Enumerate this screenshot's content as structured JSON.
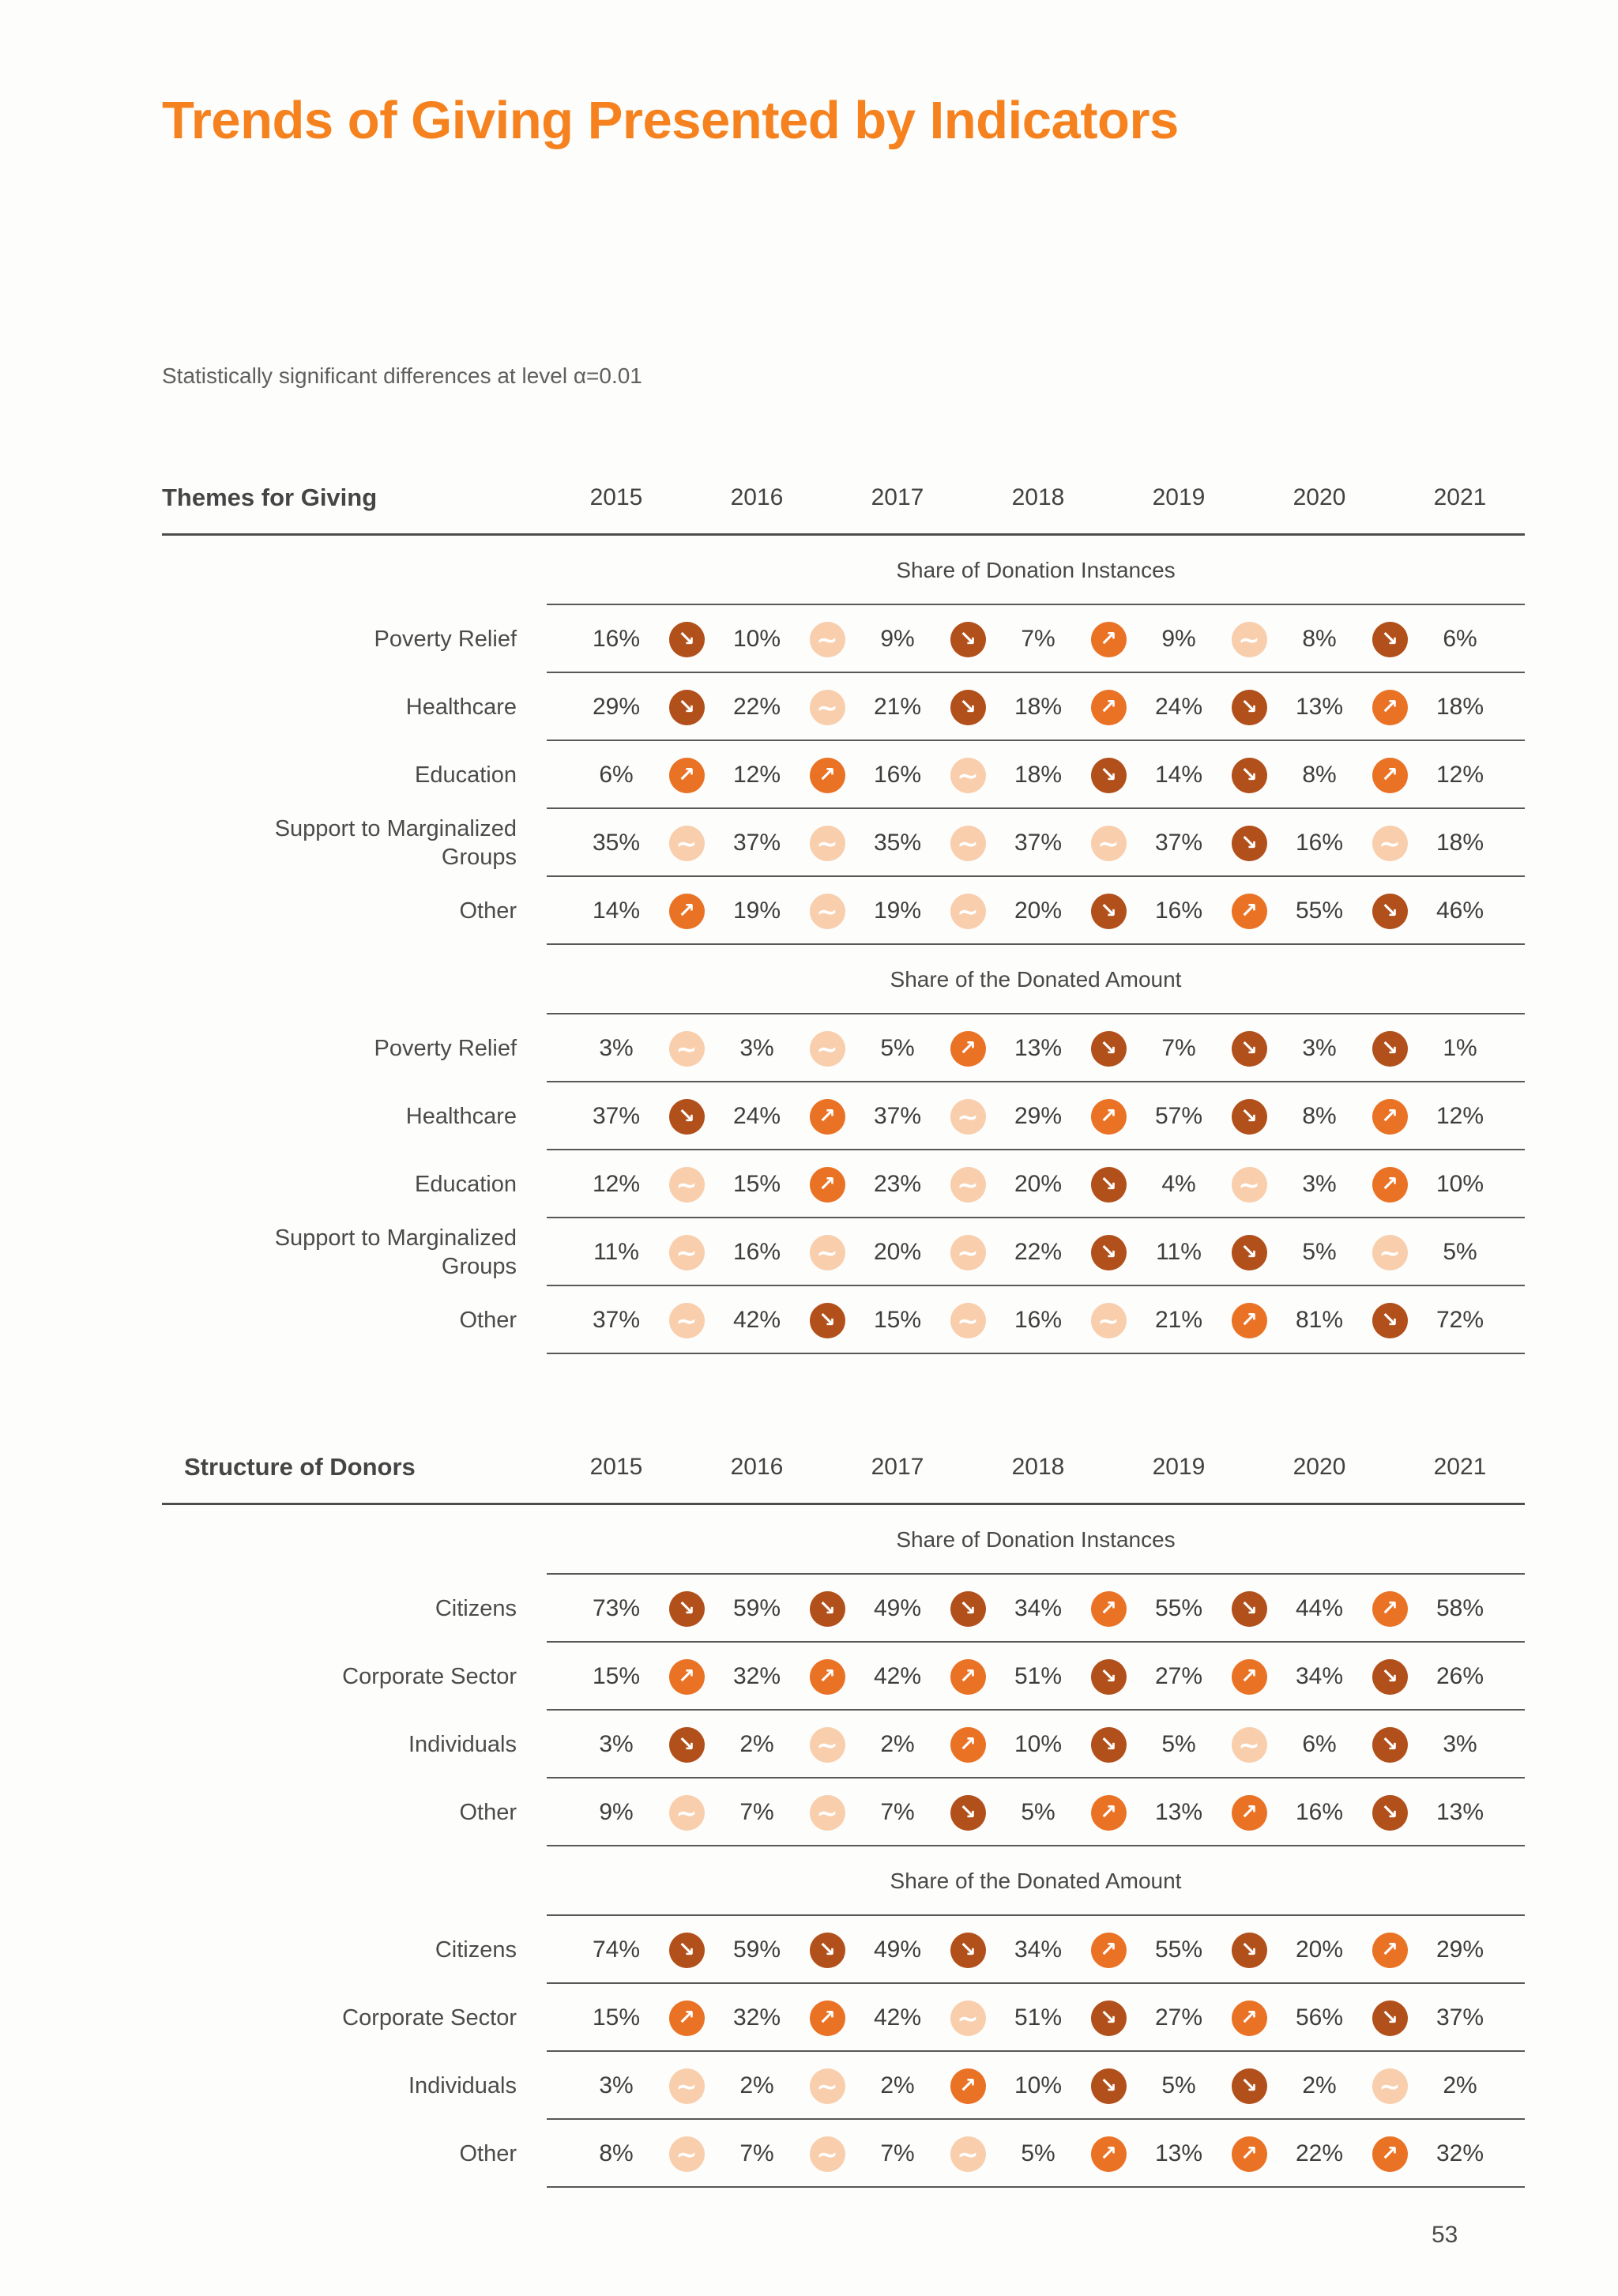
{
  "page": {
    "title": "Trends of Giving Presented by Indicators",
    "subtitle": "Statistically significant differences at level α=0.01",
    "page_number": "53"
  },
  "colors": {
    "accent_orange": "#F5821F",
    "trend_up_circle": "#EA7225",
    "trend_down_circle": "#B2501B",
    "trend_same_circle": "#F8CEAC",
    "rule_dark": "#4D4D4D",
    "text_dark": "#3E3E3E",
    "text_muted": "#5F5F5F"
  },
  "icons": {
    "up_glyph": "↗",
    "down_glyph": "↘",
    "same_glyph": "∼",
    "up_name": "trend-up-icon",
    "down_name": "trend-down-icon",
    "same_name": "trend-no-change-icon"
  },
  "tables": [
    {
      "title": "Themes for Giving",
      "years": [
        "2015",
        "2016",
        "2017",
        "2018",
        "2019",
        "2020",
        "2021"
      ],
      "sections": [
        {
          "header": "Share of Donation Instances",
          "rows": [
            {
              "label": "Poverty Relief",
              "values": [
                "16%",
                "10%",
                "9%",
                "7%",
                "9%",
                "8%",
                "6%"
              ],
              "trends": [
                "down",
                "same",
                "down",
                "up",
                "same",
                "down"
              ]
            },
            {
              "label": "Healthcare",
              "values": [
                "29%",
                "22%",
                "21%",
                "18%",
                "24%",
                "13%",
                "18%"
              ],
              "trends": [
                "down",
                "same",
                "down",
                "up",
                "down",
                "up"
              ]
            },
            {
              "label": "Education",
              "values": [
                "6%",
                "12%",
                "16%",
                "18%",
                "14%",
                "8%",
                "12%"
              ],
              "trends": [
                "up",
                "up",
                "same",
                "down",
                "down",
                "up"
              ]
            },
            {
              "label": "Support to Marginalized Groups",
              "values": [
                "35%",
                "37%",
                "35%",
                "37%",
                "37%",
                "16%",
                "18%"
              ],
              "trends": [
                "same",
                "same",
                "same",
                "same",
                "down",
                "same"
              ]
            },
            {
              "label": "Other",
              "values": [
                "14%",
                "19%",
                "19%",
                "20%",
                "16%",
                "55%",
                "46%"
              ],
              "trends": [
                "up",
                "same",
                "same",
                "down",
                "up",
                "down"
              ]
            }
          ]
        },
        {
          "header": "Share of the Donated Amount",
          "rows": [
            {
              "label": "Poverty Relief",
              "values": [
                "3%",
                "3%",
                "5%",
                "13%",
                "7%",
                "3%",
                "1%"
              ],
              "trends": [
                "same",
                "same",
                "up",
                "down",
                "down",
                "down"
              ]
            },
            {
              "label": "Healthcare",
              "values": [
                "37%",
                "24%",
                "37%",
                "29%",
                "57%",
                "8%",
                "12%"
              ],
              "trends": [
                "down",
                "up",
                "same",
                "up",
                "down",
                "up"
              ]
            },
            {
              "label": "Education",
              "values": [
                "12%",
                "15%",
                "23%",
                "20%",
                "4%",
                "3%",
                "10%"
              ],
              "trends": [
                "same",
                "up",
                "same",
                "down",
                "same",
                "up"
              ]
            },
            {
              "label": "Support to Marginalized Groups",
              "values": [
                "11%",
                "16%",
                "20%",
                "22%",
                "11%",
                "5%",
                "5%"
              ],
              "trends": [
                "same",
                "same",
                "same",
                "down",
                "down",
                "same"
              ]
            },
            {
              "label": "Other",
              "values": [
                "37%",
                "42%",
                "15%",
                "16%",
                "21%",
                "81%",
                "72%"
              ],
              "trends": [
                "same",
                "down",
                "same",
                "same",
                "up",
                "down"
              ]
            }
          ]
        }
      ]
    },
    {
      "title": "Structure of Donors",
      "years": [
        "2015",
        "2016",
        "2017",
        "2018",
        "2019",
        "2020",
        "2021"
      ],
      "sections": [
        {
          "header": "Share of Donation Instances",
          "rows": [
            {
              "label": "Citizens",
              "values": [
                "73%",
                "59%",
                "49%",
                "34%",
                "55%",
                "44%",
                "58%"
              ],
              "trends": [
                "down",
                "down",
                "down",
                "up",
                "down",
                "up"
              ]
            },
            {
              "label": "Corporate Sector",
              "values": [
                "15%",
                "32%",
                "42%",
                "51%",
                "27%",
                "34%",
                "26%"
              ],
              "trends": [
                "up",
                "up",
                "up",
                "down",
                "up",
                "down"
              ]
            },
            {
              "label": "Individuals",
              "values": [
                "3%",
                "2%",
                "2%",
                "10%",
                "5%",
                "6%",
                "3%"
              ],
              "trends": [
                "down",
                "same",
                "up",
                "down",
                "same",
                "down"
              ]
            },
            {
              "label": "Other",
              "values": [
                "9%",
                "7%",
                "7%",
                "5%",
                "13%",
                "16%",
                "13%"
              ],
              "trends": [
                "same",
                "same",
                "down",
                "up",
                "up",
                "down"
              ]
            }
          ]
        },
        {
          "header": "Share of the Donated Amount",
          "rows": [
            {
              "label": "Citizens",
              "values": [
                "74%",
                "59%",
                "49%",
                "34%",
                "55%",
                "20%",
                "29%"
              ],
              "trends": [
                "down",
                "down",
                "down",
                "up",
                "down",
                "up"
              ]
            },
            {
              "label": "Corporate Sector",
              "values": [
                "15%",
                "32%",
                "42%",
                "51%",
                "27%",
                "56%",
                "37%"
              ],
              "trends": [
                "up",
                "up",
                "same",
                "down",
                "up",
                "down"
              ]
            },
            {
              "label": "Individuals",
              "values": [
                "3%",
                "2%",
                "2%",
                "10%",
                "5%",
                "2%",
                "2%"
              ],
              "trends": [
                "same",
                "same",
                "up",
                "down",
                "down",
                "same"
              ]
            },
            {
              "label": "Other",
              "values": [
                "8%",
                "7%",
                "7%",
                "5%",
                "13%",
                "22%",
                "32%"
              ],
              "trends": [
                "same",
                "same",
                "same",
                "up",
                "up",
                "up"
              ]
            }
          ]
        }
      ]
    }
  ]
}
